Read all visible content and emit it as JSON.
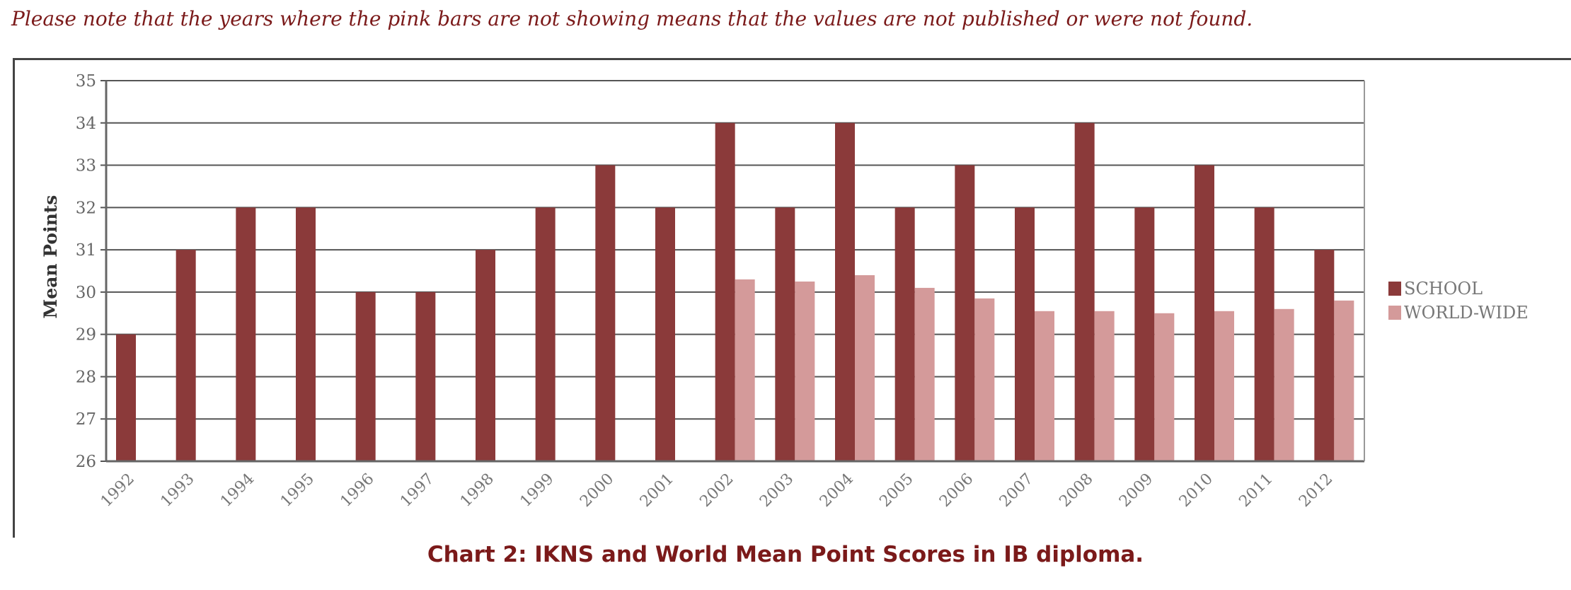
{
  "note": "Please note that the years where the pink bars are not showing means that the values are not published or were not found.",
  "caption": "Chart 2:  IKNS and World Mean Point Scores in IB diploma.",
  "chart_data": {
    "type": "bar",
    "title": "",
    "xlabel": "",
    "ylabel": "Mean Points",
    "ylim": [
      26,
      35
    ],
    "yticks": [
      "26",
      "27",
      "28",
      "29",
      "30",
      "31",
      "32",
      "33",
      "34",
      "35"
    ],
    "grid": true,
    "legend_position": "right",
    "categories": [
      "1992",
      "1993",
      "1994",
      "1995",
      "1996",
      "1997",
      "1998",
      "1999",
      "2000",
      "2001",
      "2002",
      "2003",
      "2004",
      "2005",
      "2006",
      "2007",
      "2008",
      "2009",
      "2010",
      "2011",
      "2012"
    ],
    "series": [
      {
        "name": "SCHOOL",
        "color": "#8b3a3a",
        "values": [
          29,
          31,
          32,
          32,
          30,
          30,
          31,
          32,
          33,
          32,
          34,
          32,
          34,
          32,
          33,
          32,
          34,
          32,
          33,
          32,
          31
        ]
      },
      {
        "name": "WORLD-WIDE",
        "color": "#d49a9a",
        "values": [
          null,
          null,
          null,
          null,
          null,
          null,
          null,
          null,
          null,
          null,
          30.3,
          30.25,
          30.4,
          30.1,
          29.85,
          29.55,
          29.55,
          29.5,
          29.55,
          29.6,
          29.8
        ]
      }
    ]
  }
}
